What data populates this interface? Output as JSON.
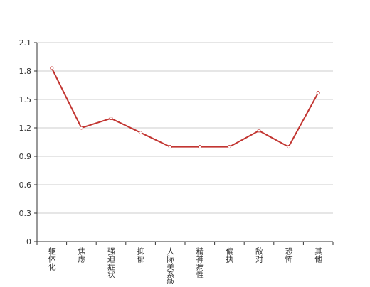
{
  "chart_data": {
    "type": "line",
    "categories": [
      "躯体化",
      "焦虑",
      "强迫症状",
      "抑郁",
      "人际关系敏感",
      "精神病性",
      "偏执",
      "敌对",
      "恐怖",
      "其他"
    ],
    "values": [
      1.83,
      1.2,
      1.3,
      1.15,
      1.0,
      1.0,
      1.0,
      1.17,
      1.0,
      1.57
    ],
    "color": "#c23531",
    "ylim": [
      0,
      2.1
    ],
    "yticks": [
      0,
      0.3,
      0.6,
      0.9,
      1.2,
      1.5,
      1.8,
      2.1
    ],
    "grid": true
  }
}
